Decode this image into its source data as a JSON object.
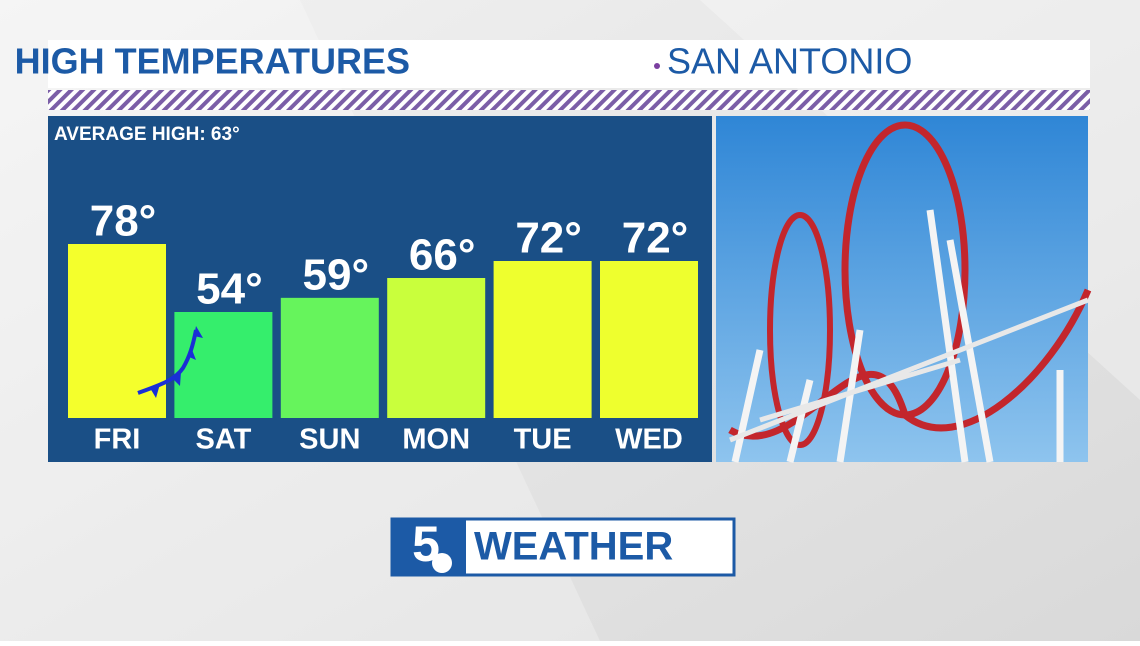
{
  "chart_data": {
    "type": "bar",
    "title": "HIGH TEMPERATURES",
    "subtitle": "SAN ANTONIO",
    "annotation": "AVERAGE HIGH: 63°",
    "categories": [
      "FRI",
      "SAT",
      "SUN",
      "MON",
      "TUE",
      "WED"
    ],
    "values": [
      78,
      54,
      59,
      66,
      72,
      72
    ],
    "value_labels": [
      "78°",
      "54°",
      "59°",
      "66°",
      "72°",
      "72°"
    ],
    "colors": [
      "#f4ff2c",
      "#35ee6c",
      "#66f45c",
      "#c9ff3c",
      "#eeff2e",
      "#eeff2e"
    ]
  },
  "logo": {
    "number": "5",
    "text": "WEATHER"
  }
}
